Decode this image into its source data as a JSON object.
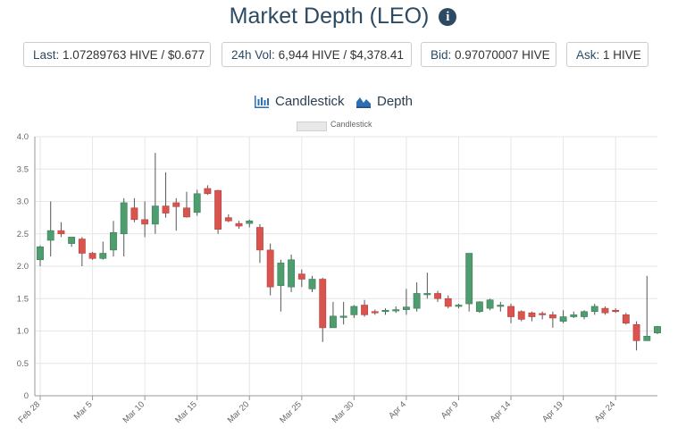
{
  "header": {
    "title": "Market Depth (LEO)",
    "info_icon": "info-circle-icon"
  },
  "stats": {
    "last_label": "Last:",
    "last_value": "1.07289763 HIVE / $0.677",
    "vol_label": "24h Vol:",
    "vol_value": "6,944 HIVE / $4,378.41",
    "bid_label": "Bid:",
    "bid_value": "0.97070007 HIVE",
    "ask_label": "Ask:",
    "ask_value": "1 HIVE"
  },
  "tabs": [
    {
      "label": "Candlestick",
      "icon": "candlestick-chart-icon"
    },
    {
      "label": "Depth",
      "icon": "depth-chart-icon"
    }
  ],
  "colors": {
    "up": "#4e9d6e",
    "down": "#d9534f",
    "title": "#2c4a63",
    "grid": "#e6e6e6"
  },
  "chart_data": {
    "type": "candlestick",
    "legend": [
      "Candlestick"
    ],
    "legend_position": "top-center",
    "grid": true,
    "ylim": [
      0,
      4.0
    ],
    "yticks": [
      "0",
      "0.5",
      "1.0",
      "1.5",
      "2.0",
      "2.5",
      "3.0",
      "3.5",
      "4.0"
    ],
    "ytick_values": [
      0,
      0.5,
      1.0,
      1.5,
      2.0,
      2.5,
      3.0,
      3.5,
      4.0
    ],
    "xticks": [
      "Feb 28",
      "Mar 5",
      "Mar 10",
      "Mar 15",
      "Mar 20",
      "Mar 25",
      "Mar 30",
      "Apr 4",
      "Apr 9",
      "Apr 14",
      "Apr 19",
      "Apr 24"
    ],
    "xtick_index": [
      0,
      5,
      10,
      15,
      20,
      25,
      30,
      35,
      40,
      45,
      50,
      55
    ],
    "candles": [
      {
        "date": "Feb 28",
        "o": 2.1,
        "h": 2.32,
        "l": 2.0,
        "c": 2.3
      },
      {
        "date": "Mar 1",
        "o": 2.4,
        "h": 3.0,
        "l": 2.15,
        "c": 2.55
      },
      {
        "date": "Mar 2",
        "o": 2.55,
        "h": 2.68,
        "l": 2.45,
        "c": 2.5
      },
      {
        "date": "Mar 3",
        "o": 2.35,
        "h": 2.45,
        "l": 2.3,
        "c": 2.45
      },
      {
        "date": "Mar 4",
        "o": 2.42,
        "h": 2.45,
        "l": 2.0,
        "c": 2.2
      },
      {
        "date": "Mar 5",
        "o": 2.2,
        "h": 2.22,
        "l": 2.1,
        "c": 2.12
      },
      {
        "date": "Mar 6",
        "o": 2.12,
        "h": 2.38,
        "l": 2.1,
        "c": 2.2
      },
      {
        "date": "Mar 7",
        "o": 2.25,
        "h": 2.7,
        "l": 2.15,
        "c": 2.52
      },
      {
        "date": "Mar 8",
        "o": 2.5,
        "h": 3.05,
        "l": 2.15,
        "c": 2.98
      },
      {
        "date": "Mar 9",
        "o": 2.9,
        "h": 3.05,
        "l": 2.68,
        "c": 2.72
      },
      {
        "date": "Mar 10",
        "o": 2.72,
        "h": 3.0,
        "l": 2.45,
        "c": 2.65
      },
      {
        "date": "Mar 11",
        "o": 2.65,
        "h": 3.75,
        "l": 2.5,
        "c": 2.93
      },
      {
        "date": "Mar 12",
        "o": 2.93,
        "h": 3.45,
        "l": 2.75,
        "c": 2.82
      },
      {
        "date": "Mar 13",
        "o": 2.98,
        "h": 3.05,
        "l": 2.55,
        "c": 2.92
      },
      {
        "date": "Mar 14",
        "o": 2.9,
        "h": 3.15,
        "l": 2.75,
        "c": 2.76
      },
      {
        "date": "Mar 15",
        "o": 2.83,
        "h": 3.18,
        "l": 2.78,
        "c": 3.12
      },
      {
        "date": "Mar 16",
        "o": 3.2,
        "h": 3.25,
        "l": 3.1,
        "c": 3.12
      },
      {
        "date": "Mar 17",
        "o": 3.17,
        "h": 3.18,
        "l": 2.5,
        "c": 2.57
      },
      {
        "date": "Mar 18",
        "o": 2.75,
        "h": 2.8,
        "l": 2.68,
        "c": 2.7
      },
      {
        "date": "Mar 19",
        "o": 2.66,
        "h": 2.7,
        "l": 2.58,
        "c": 2.62
      },
      {
        "date": "Mar 20",
        "o": 2.66,
        "h": 2.72,
        "l": 2.6,
        "c": 2.7
      },
      {
        "date": "Mar 21",
        "o": 2.6,
        "h": 2.65,
        "l": 2.05,
        "c": 2.25
      },
      {
        "date": "Mar 22",
        "o": 2.25,
        "h": 2.35,
        "l": 1.55,
        "c": 1.68
      },
      {
        "date": "Mar 23",
        "o": 1.7,
        "h": 2.1,
        "l": 1.3,
        "c": 2.05
      },
      {
        "date": "Mar 24",
        "o": 1.68,
        "h": 2.18,
        "l": 1.6,
        "c": 2.1
      },
      {
        "date": "Mar 25",
        "o": 1.88,
        "h": 1.95,
        "l": 1.68,
        "c": 1.8
      },
      {
        "date": "Mar 26",
        "o": 1.65,
        "h": 1.85,
        "l": 1.6,
        "c": 1.8
      },
      {
        "date": "Mar 27",
        "o": 1.8,
        "h": 1.82,
        "l": 0.83,
        "c": 1.05
      },
      {
        "date": "Mar 28",
        "o": 1.05,
        "h": 1.45,
        "l": 1.05,
        "c": 1.23
      },
      {
        "date": "Mar 29",
        "o": 1.22,
        "h": 1.45,
        "l": 1.1,
        "c": 1.23
      },
      {
        "date": "Mar 30",
        "o": 1.25,
        "h": 1.4,
        "l": 1.2,
        "c": 1.38
      },
      {
        "date": "Mar 31",
        "o": 1.4,
        "h": 1.48,
        "l": 1.22,
        "c": 1.25
      },
      {
        "date": "Apr 1",
        "o": 1.3,
        "h": 1.33,
        "l": 1.25,
        "c": 1.28
      },
      {
        "date": "Apr 2",
        "o": 1.3,
        "h": 1.35,
        "l": 1.25,
        "c": 1.32
      },
      {
        "date": "Apr 3",
        "o": 1.32,
        "h": 1.38,
        "l": 1.28,
        "c": 1.33
      },
      {
        "date": "Apr 4",
        "o": 1.33,
        "h": 1.65,
        "l": 1.25,
        "c": 1.37
      },
      {
        "date": "Apr 5",
        "o": 1.35,
        "h": 1.75,
        "l": 1.3,
        "c": 1.58
      },
      {
        "date": "Apr 6",
        "o": 1.58,
        "h": 1.9,
        "l": 1.5,
        "c": 1.58
      },
      {
        "date": "Apr 7",
        "o": 1.58,
        "h": 1.62,
        "l": 1.45,
        "c": 1.5
      },
      {
        "date": "Apr 8",
        "o": 1.5,
        "h": 1.55,
        "l": 1.35,
        "c": 1.38
      },
      {
        "date": "Apr 9",
        "o": 1.4,
        "h": 1.42,
        "l": 1.35,
        "c": 1.4
      },
      {
        "date": "Apr 10",
        "o": 1.42,
        "h": 2.2,
        "l": 1.3,
        "c": 2.2
      },
      {
        "date": "Apr 11",
        "o": 1.3,
        "h": 1.46,
        "l": 1.28,
        "c": 1.45
      },
      {
        "date": "Apr 12",
        "o": 1.35,
        "h": 1.5,
        "l": 1.32,
        "c": 1.48
      },
      {
        "date": "Apr 13",
        "o": 1.4,
        "h": 1.45,
        "l": 1.3,
        "c": 1.4
      },
      {
        "date": "Apr 14",
        "o": 1.38,
        "h": 1.42,
        "l": 1.12,
        "c": 1.22
      },
      {
        "date": "Apr 15",
        "o": 1.3,
        "h": 1.32,
        "l": 1.15,
        "c": 1.18
      },
      {
        "date": "Apr 16",
        "o": 1.28,
        "h": 1.3,
        "l": 1.15,
        "c": 1.22
      },
      {
        "date": "Apr 17",
        "o": 1.27,
        "h": 1.3,
        "l": 1.18,
        "c": 1.25
      },
      {
        "date": "Apr 18",
        "o": 1.25,
        "h": 1.3,
        "l": 1.05,
        "c": 1.2
      },
      {
        "date": "Apr 19",
        "o": 1.15,
        "h": 1.32,
        "l": 1.12,
        "c": 1.22
      },
      {
        "date": "Apr 20",
        "o": 1.22,
        "h": 1.3,
        "l": 1.2,
        "c": 1.25
      },
      {
        "date": "Apr 21",
        "o": 1.22,
        "h": 1.32,
        "l": 1.18,
        "c": 1.3
      },
      {
        "date": "Apr 22",
        "o": 1.3,
        "h": 1.42,
        "l": 1.25,
        "c": 1.38
      },
      {
        "date": "Apr 23",
        "o": 1.35,
        "h": 1.38,
        "l": 1.25,
        "c": 1.28
      },
      {
        "date": "Apr 24",
        "o": 1.32,
        "h": 1.35,
        "l": 1.28,
        "c": 1.3
      },
      {
        "date": "Apr 25",
        "o": 1.25,
        "h": 1.28,
        "l": 1.1,
        "c": 1.12
      },
      {
        "date": "Apr 26",
        "o": 1.1,
        "h": 1.15,
        "l": 0.7,
        "c": 0.85
      },
      {
        "date": "Apr 27",
        "o": 0.85,
        "h": 1.85,
        "l": 0.85,
        "c": 0.92
      },
      {
        "date": "Apr 28",
        "o": 0.97,
        "h": 1.08,
        "l": 0.95,
        "c": 1.07
      }
    ]
  }
}
